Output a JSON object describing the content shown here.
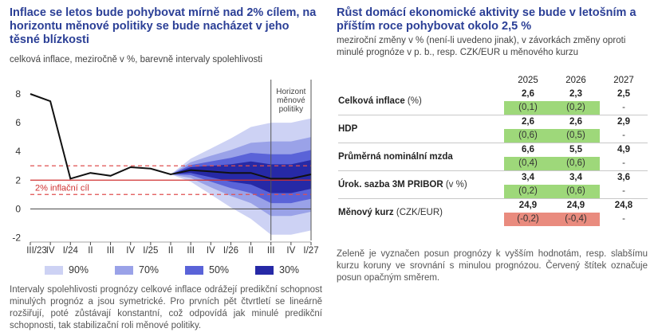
{
  "left": {
    "title": "Inflace se letos bude pohybovat mírně nad 2% cílem, na horizontu měnové politiky se bude nacházet v jeho těsné blízkosti",
    "subtitle": "celková inflace, meziročně v %, barevně intervaly spolehlivosti",
    "horizon_label": "Horizont měnové politiky",
    "target_label": "2% inflační cíl",
    "legend": [
      {
        "label": "90%",
        "color": "#cdd2f4"
      },
      {
        "label": "70%",
        "color": "#9aa2e8"
      },
      {
        "label": "50%",
        "color": "#5a63d8"
      },
      {
        "label": "30%",
        "color": "#2629a6"
      }
    ],
    "note": "Intervaly spolehlivosti prognózy celkové inflace odrážejí predikční schopnost minulých prognóz a jsou symetrické. Pro prvních pět čtvrtletí se lineárně rozšiřují, poté zůstávají konstantní, což odpovídá jak minulé predikční schopnosti, tak stabilizační roli měnové politiky."
  },
  "chart_data": {
    "type": "line",
    "xlabels": [
      "III/23",
      "IV",
      "I/24",
      "II",
      "III",
      "IV",
      "I/25",
      "II",
      "III",
      "IV",
      "I/26",
      "II",
      "III",
      "IV",
      "I/27"
    ],
    "series": [
      {
        "values": [
          8.0,
          7.5,
          2.1,
          2.5,
          2.3,
          2.9,
          2.8,
          2.4,
          2.7,
          2.6,
          2.5,
          2.5,
          2.1,
          2.1,
          2.4
        ]
      }
    ],
    "forecast_start_index": 7,
    "target": 2,
    "target_band": [
      1,
      3
    ],
    "horizon_range": [
      12,
      14
    ],
    "bands_half_width": {
      "90%": [
        0,
        0.8,
        1.6,
        2.4,
        3.2,
        3.9,
        3.9,
        3.9
      ],
      "70%": [
        0,
        0.55,
        1.1,
        1.6,
        2.1,
        2.6,
        2.6,
        2.6
      ],
      "50%": [
        0,
        0.35,
        0.7,
        1.05,
        1.4,
        1.7,
        1.7,
        1.7
      ],
      "30%": [
        0,
        0.2,
        0.4,
        0.6,
        0.8,
        1.0,
        1.0,
        1.0
      ]
    },
    "ylim": [
      -2.2,
      9
    ],
    "yticks": [
      -2,
      0,
      2,
      4,
      6,
      8
    ],
    "ylabel": "",
    "xlabel": ""
  },
  "right": {
    "title": "Růst domácí ekonomické aktivity se bude v letošním a příštím roce pohybovat okolo 2,5 %",
    "subtitle": "meziroční změny v % (není-li uvedeno jinak), v závorkách změny oproti minulé prognóze v p. b., resp. CZK/EUR u měnového kurzu",
    "years": [
      "2025",
      "2026",
      "2027"
    ],
    "rows": [
      {
        "label_bold": "Celková inflace",
        "label_rest": " (%)",
        "values": [
          "2,6",
          "2,3",
          "2,5"
        ],
        "changes": [
          "(0,1)",
          "(0,2)",
          "-"
        ],
        "change_colors": [
          "g",
          "g",
          "n"
        ]
      },
      {
        "label_bold": "HDP",
        "label_rest": "",
        "values": [
          "2,6",
          "2,6",
          "2,9"
        ],
        "changes": [
          "(0,6)",
          "(0,5)",
          "-"
        ],
        "change_colors": [
          "g",
          "g",
          "n"
        ]
      },
      {
        "label_bold": "Průměrná nominální mzda",
        "label_rest": "",
        "values": [
          "6,6",
          "5,5",
          "4,9"
        ],
        "changes": [
          "(0,4)",
          "(0,6)",
          "-"
        ],
        "change_colors": [
          "g",
          "g",
          "n"
        ]
      },
      {
        "label_bold": "Úrok. sazba 3M PRIBOR",
        "label_rest": " (v %)",
        "values": [
          "3,4",
          "3,4",
          "3,6"
        ],
        "changes": [
          "(0,2)",
          "(0,6)",
          "-"
        ],
        "change_colors": [
          "g",
          "g",
          "n"
        ]
      },
      {
        "label_bold": "Měnový kurz",
        "label_rest": " (CZK/EUR)",
        "values": [
          "24,9",
          "24,9",
          "24,8"
        ],
        "changes": [
          "(-0,2)",
          "(-0,4)",
          "-"
        ],
        "change_colors": [
          "r",
          "r",
          "n"
        ]
      }
    ],
    "note": "Zeleně je vyznačen posun prognózy k vyšším hodnotám, resp. slabšímu kurzu koruny ve srovnání s minulou prognózou. Červený štítek označuje posun opačným směrem."
  }
}
